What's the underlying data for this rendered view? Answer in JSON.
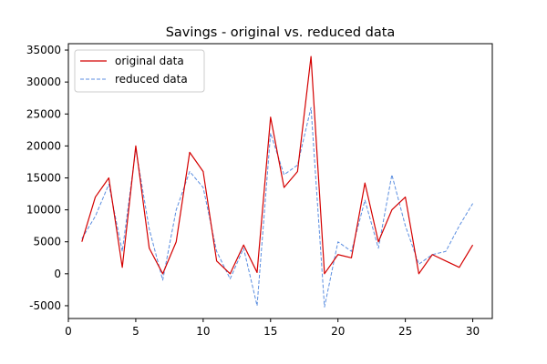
{
  "chart_data": {
    "type": "line",
    "title": "Savings - original vs. reduced data",
    "xlabel": "",
    "ylabel": "",
    "xlim": [
      0,
      31.45
    ],
    "ylim": [
      -7000,
      36000
    ],
    "xticks": [
      0,
      5,
      10,
      15,
      20,
      25,
      30
    ],
    "yticks": [
      -5000,
      0,
      5000,
      10000,
      15000,
      20000,
      25000,
      30000,
      35000
    ],
    "grid": false,
    "legend_position": "top-left",
    "x": [
      1,
      2,
      3,
      4,
      5,
      6,
      7,
      8,
      9,
      10,
      11,
      12,
      13,
      14,
      15,
      16,
      17,
      18,
      19,
      20,
      21,
      22,
      23,
      24,
      25,
      26,
      27,
      28,
      29,
      30
    ],
    "series": [
      {
        "name": "original data",
        "color": "#d40000",
        "style": "solid",
        "values": [
          5000,
          12000,
          15000,
          1000,
          20000,
          4000,
          0,
          5000,
          19000,
          16000,
          2000,
          0,
          4500,
          200,
          24500,
          13500,
          16000,
          34000,
          0,
          3000,
          2500,
          14200,
          5000,
          10000,
          12000,
          0,
          3000,
          2000,
          1000,
          4500
        ]
      },
      {
        "name": "reduced data",
        "color": "#5b8ee0",
        "style": "dashed",
        "values": [
          5500,
          9000,
          14000,
          3500,
          19500,
          7000,
          -1000,
          10000,
          16000,
          13500,
          3500,
          -800,
          4000,
          -5000,
          22000,
          15500,
          17000,
          26000,
          -5200,
          5000,
          3500,
          11500,
          4000,
          15500,
          7500,
          1500,
          3000,
          3500,
          7500,
          11000
        ]
      }
    ]
  }
}
